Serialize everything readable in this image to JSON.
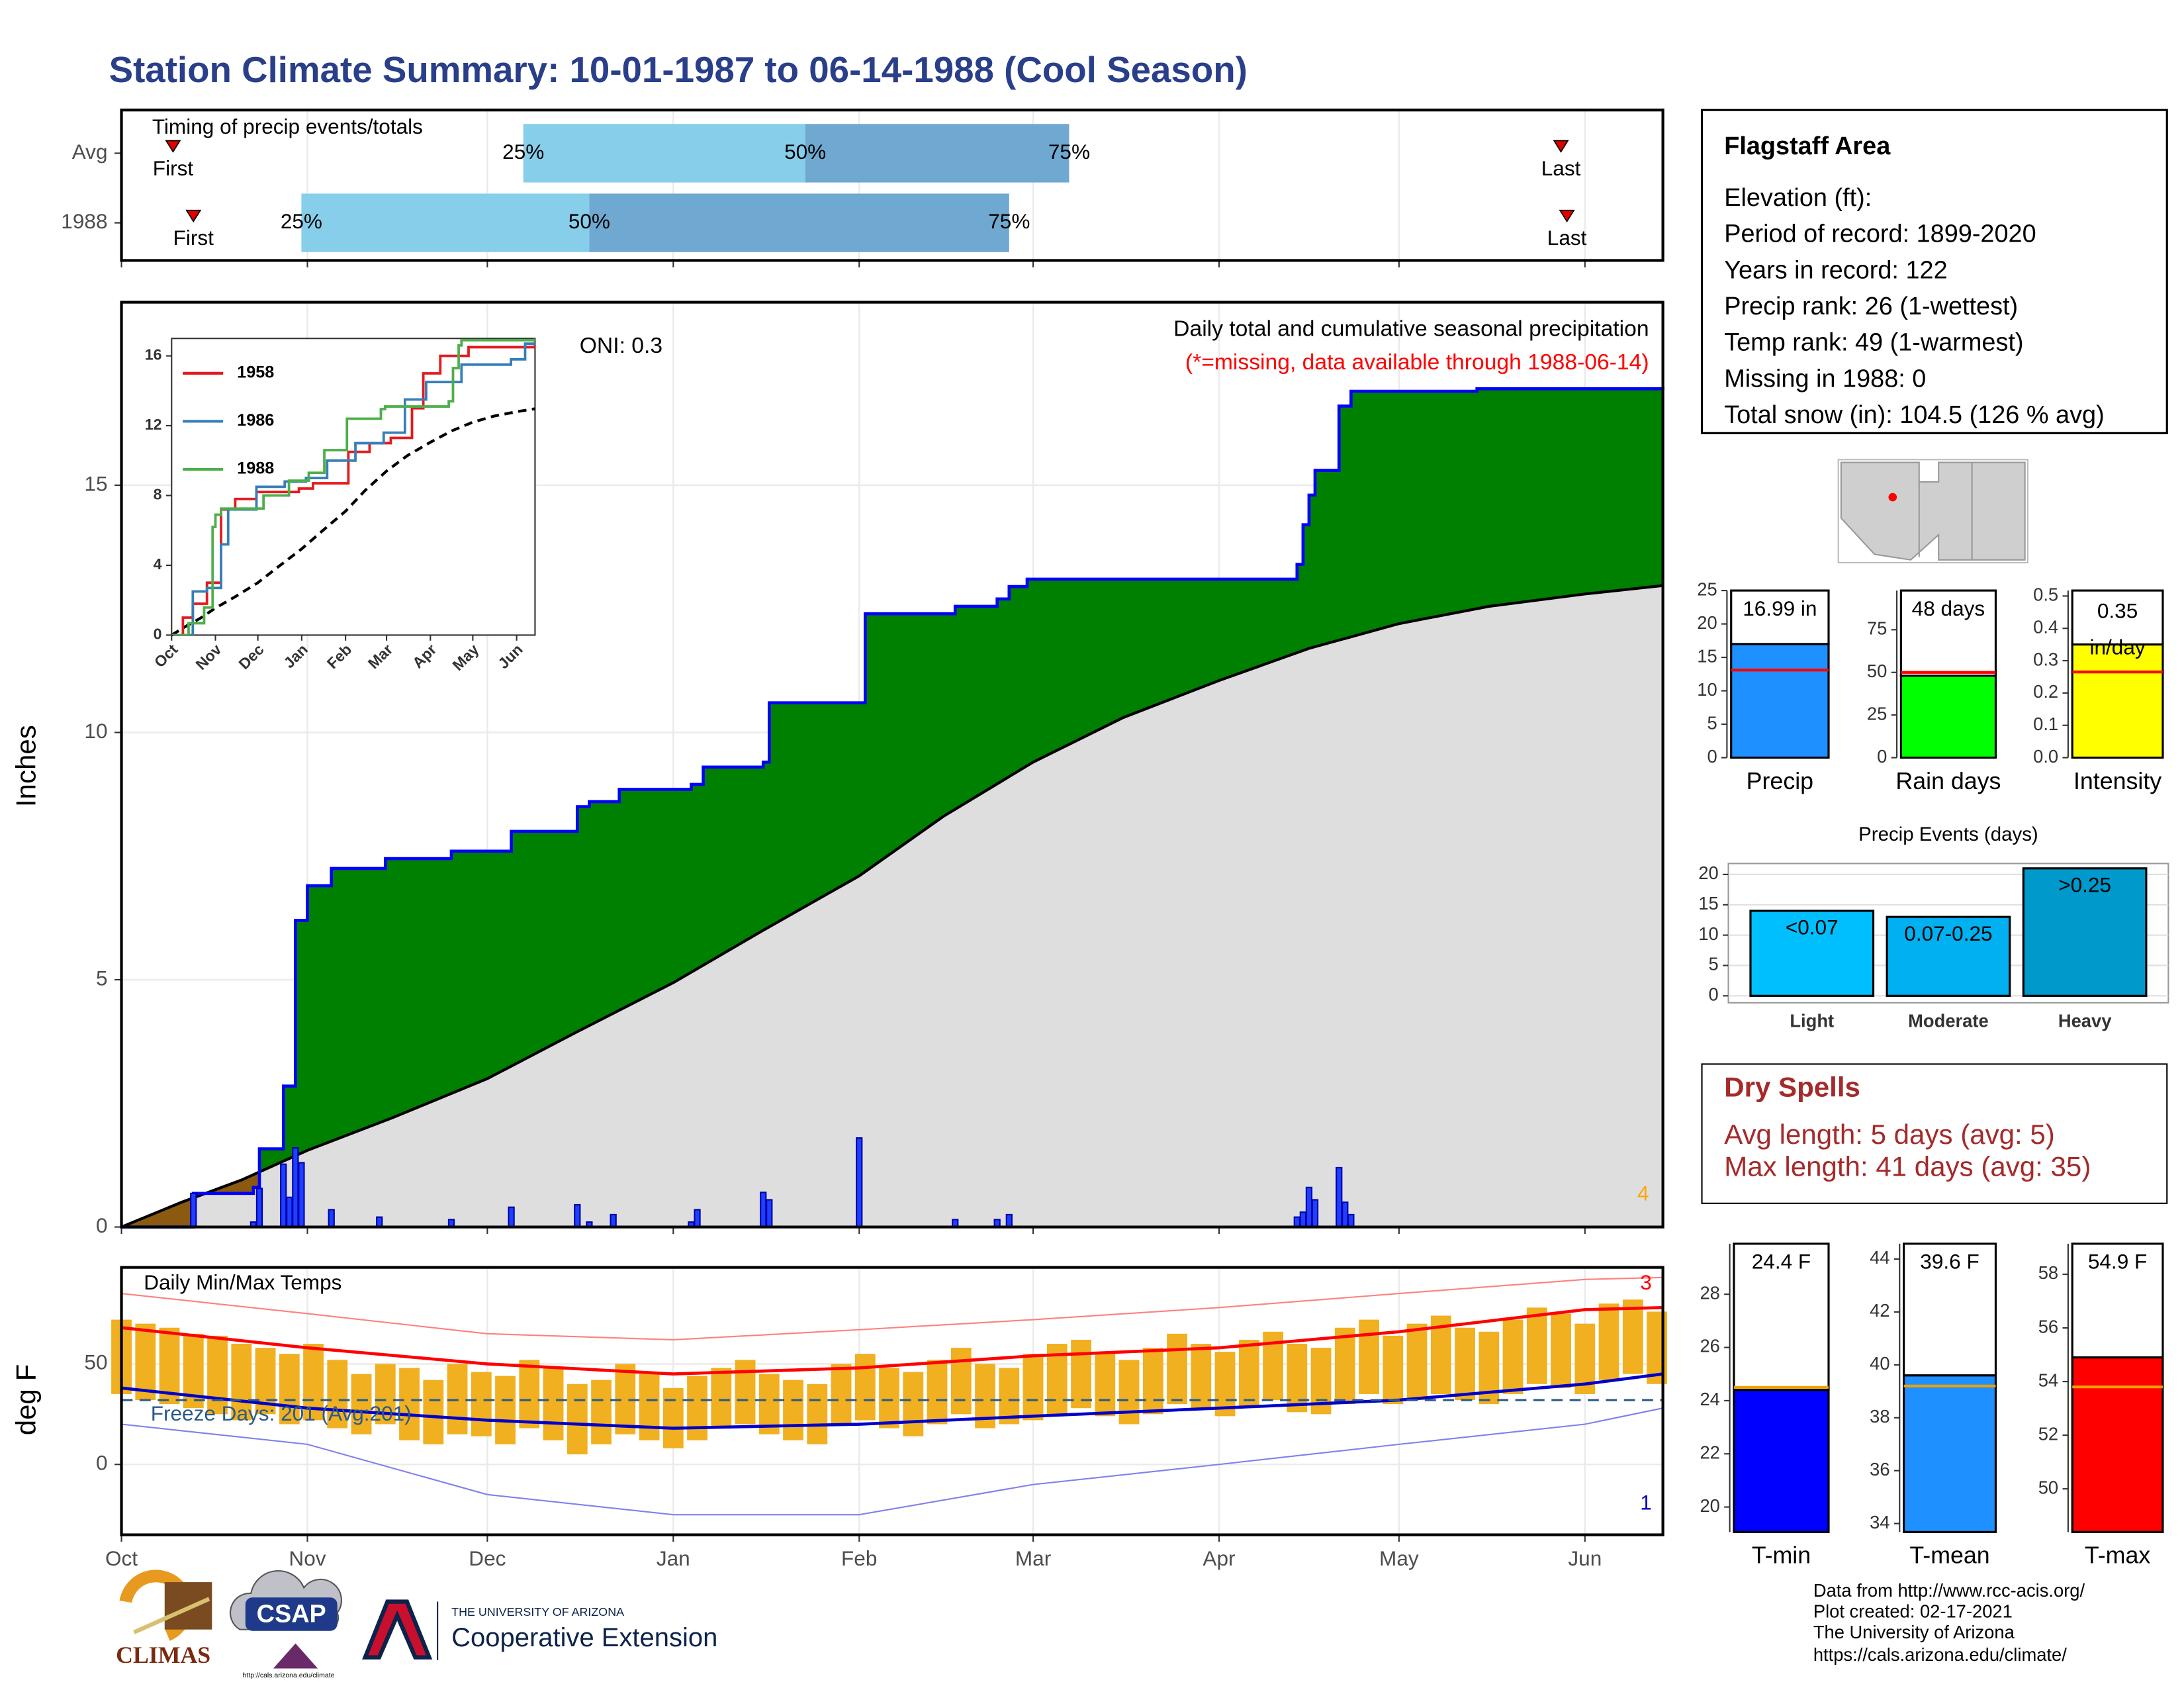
{
  "title": "Station Climate Summary: 10-01-1987 to 06-14-1988 (Cool Season)",
  "station": {
    "name": "Flagstaff Area",
    "lines": [
      "Elevation (ft):",
      "Period of record: 1899-2020",
      "Years in record: 122",
      "Precip rank: 26 (1-wettest)",
      "Temp rank: 49 (1-warmest)",
      "Missing in 1988: 0",
      "Total snow (in): 104.5 (126 % avg)"
    ]
  },
  "dry_spells": {
    "title": "Dry Spells",
    "lines": [
      "Avg length: 5 days (avg: 5)",
      "Max length: 41 days (avg: 35)"
    ]
  },
  "footer": [
    "Data from http://www.rcc-acis.org/",
    "Plot created: 02-17-2021",
    "The University of Arizona",
    "https://cals.arizona.edu/climate/"
  ],
  "logos": {
    "climas": "CLIMAS",
    "csap": "CSAP",
    "csap_url": "http://cals.arizona.edu/climate",
    "university": "THE UNIVERSITY OF ARIZONA",
    "extension": "Cooperative Extension"
  },
  "chart_data": [
    {
      "type": "timing",
      "title": "Timing of precip events/totals",
      "xlim": [
        0,
        257
      ],
      "xticks": [
        0,
        31,
        61,
        92,
        123,
        152,
        183,
        213,
        244
      ],
      "marker_labels": [
        "First",
        "Last"
      ],
      "quantile_labels": [
        "25%",
        "50%",
        "75%"
      ],
      "colors": [
        "#87ceeb",
        "#6fa8d0"
      ],
      "marker_color": "#e00000",
      "rows": [
        {
          "name": "Avg",
          "first": 8.6,
          "last": 240,
          "quantiles": [
            67,
            114,
            158
          ]
        },
        {
          "name": "1988",
          "first": 12,
          "last": 241,
          "quantiles": [
            30,
            78,
            148
          ]
        }
      ]
    },
    {
      "type": "cumulative-precip",
      "title": "Daily total and cumulative seasonal precipitation",
      "subtitle": "(*=missing, data available through 1988-06-14)",
      "annotation": "ONI: 0.3",
      "corner_label": "4",
      "y_label": "Inches",
      "xlim": [
        0,
        257
      ],
      "xticks": [
        0,
        31,
        61,
        92,
        123,
        152,
        183,
        213,
        244
      ],
      "ylim": [
        0,
        18.7
      ],
      "yticks": [
        0,
        5,
        10,
        15
      ],
      "grid": true,
      "colors": {
        "above": "#008000",
        "below": "#8b5a10",
        "average_fill": "#dedede",
        "average_line": "#000000",
        "observed_line": "#0000ff",
        "daily": "#1f3fff"
      },
      "observed": {
        "x": [
          0,
          12,
          22,
          23,
          27,
          29,
          31,
          35,
          44,
          55,
          65,
          76,
          78,
          83,
          95,
          97,
          107,
          108,
          124,
          139,
          146,
          148,
          151,
          196,
          197,
          198,
          199,
          203,
          205,
          226,
          257
        ],
        "values": [
          0,
          0.68,
          0.8,
          1.58,
          2.85,
          6.2,
          6.9,
          7.25,
          7.45,
          7.6,
          8.0,
          8.5,
          8.6,
          8.85,
          8.95,
          9.3,
          9.4,
          10.6,
          12.4,
          12.55,
          12.7,
          12.95,
          13.1,
          13.4,
          14.2,
          14.8,
          15.3,
          16.6,
          16.9,
          16.95,
          16.99
        ]
      },
      "average": {
        "x": [
          0,
          10,
          20,
          31,
          45,
          61,
          76,
          92,
          107,
          123,
          137,
          152,
          167,
          183,
          198,
          213,
          228,
          244,
          257
        ],
        "values": [
          0,
          0.5,
          0.95,
          1.55,
          2.2,
          3.0,
          3.95,
          4.94,
          6.0,
          7.1,
          8.3,
          9.4,
          10.3,
          11.05,
          11.7,
          12.2,
          12.55,
          12.8,
          12.97
        ]
      },
      "daily": {
        "x": [
          12,
          22,
          23,
          27,
          28,
          29,
          30,
          35,
          43,
          55,
          65,
          76,
          78,
          82,
          95,
          96,
          107,
          108,
          123,
          139,
          146,
          148,
          196,
          197,
          198,
          199,
          203,
          204,
          205
        ],
        "values": [
          0.68,
          0.1,
          0.78,
          1.27,
          0.6,
          1.6,
          1.3,
          0.35,
          0.2,
          0.15,
          0.4,
          0.45,
          0.1,
          0.25,
          0.1,
          0.35,
          0.7,
          0.55,
          1.8,
          0.15,
          0.15,
          0.25,
          0.2,
          0.3,
          0.8,
          0.55,
          1.2,
          0.5,
          0.25
        ]
      }
    },
    {
      "type": "line",
      "xlim": [
        0,
        257
      ],
      "xticks": [
        {
          "value": 0,
          "label": "Oct"
        },
        {
          "value": 31,
          "label": "Nov"
        },
        {
          "value": 61,
          "label": "Dec"
        },
        {
          "value": 92,
          "label": "Jan"
        },
        {
          "value": 123,
          "label": "Feb"
        },
        {
          "value": 152,
          "label": "Mar"
        },
        {
          "value": 183,
          "label": "Apr"
        },
        {
          "value": 213,
          "label": "May"
        },
        {
          "value": 244,
          "label": "Jun"
        }
      ],
      "ylim": [
        0,
        17
      ],
      "yticks": [
        0,
        4,
        8,
        12,
        16
      ],
      "series": [
        {
          "name": "1958",
          "color": "#e41a1c",
          "x": [
            0,
            8,
            15,
            25,
            35,
            45,
            60,
            90,
            100,
            115,
            125,
            140,
            155,
            170,
            178,
            190,
            210,
            257
          ],
          "values": [
            0,
            1.0,
            1.8,
            3.0,
            7.2,
            7.8,
            8.2,
            8.4,
            8.7,
            8.7,
            10.5,
            11.0,
            11.3,
            13.0,
            15.0,
            16.0,
            16.5,
            16.9
          ]
        },
        {
          "name": "1986",
          "color": "#377eb8",
          "x": [
            0,
            15,
            25,
            35,
            40,
            60,
            80,
            95,
            110,
            130,
            150,
            165,
            180,
            205,
            240,
            250,
            257
          ],
          "values": [
            0,
            2.5,
            2.7,
            5.2,
            7.2,
            8.5,
            8.8,
            9.0,
            10.0,
            11.0,
            11.6,
            13.5,
            14.5,
            15.5,
            15.8,
            16.7,
            16.8
          ]
        },
        {
          "name": "1988",
          "color": "#4daf4a",
          "x": [
            0,
            12,
            23,
            29,
            31,
            35,
            65,
            83,
            97,
            108,
            124,
            148,
            151,
            196,
            199,
            203,
            205,
            257
          ],
          "values": [
            0,
            0.68,
            1.58,
            6.2,
            6.9,
            7.25,
            8.0,
            8.85,
            9.3,
            10.6,
            12.4,
            12.95,
            13.1,
            13.4,
            15.3,
            16.6,
            16.9,
            16.99
          ]
        }
      ],
      "average": {
        "color": "#000000",
        "x": [
          0,
          10,
          20,
          31,
          45,
          61,
          76,
          92,
          107,
          123,
          137,
          152,
          167,
          183,
          198,
          213,
          228,
          244,
          257
        ],
        "values": [
          0,
          0.5,
          0.95,
          1.55,
          2.2,
          3.0,
          3.95,
          4.94,
          6.0,
          7.1,
          8.3,
          9.4,
          10.3,
          11.05,
          11.7,
          12.2,
          12.55,
          12.8,
          12.97
        ]
      }
    },
    {
      "type": "temperature",
      "title": "Daily Min/Max Temps",
      "annotation": "Freeze Days: 201 (Avg:201)",
      "y_label": "deg F",
      "record_highs": 3,
      "record_lows": 1,
      "freeze_line": 32,
      "xlim": [
        0,
        257
      ],
      "xticks": [
        {
          "value": 0,
          "label": "Oct"
        },
        {
          "value": 31,
          "label": "Nov"
        },
        {
          "value": 61,
          "label": "Dec"
        },
        {
          "value": 92,
          "label": "Jan"
        },
        {
          "value": 123,
          "label": "Feb"
        },
        {
          "value": 152,
          "label": "Mar"
        },
        {
          "value": 183,
          "label": "Apr"
        },
        {
          "value": 213,
          "label": "May"
        },
        {
          "value": 244,
          "label": "Jun"
        }
      ],
      "ylim": [
        -35,
        98
      ],
      "yticks": [
        0,
        50
      ],
      "grid": true,
      "colors": {
        "daily": "#f0b020",
        "average_max": "#ff0000",
        "average_min": "#0000cc",
        "record_max": "#ff8080",
        "record_min": "#8080ee",
        "freeze": "#2a5a8a"
      },
      "daily": {
        "x": [
          0,
          4,
          8,
          12,
          16,
          20,
          24,
          28,
          32,
          36,
          40,
          44,
          48,
          52,
          56,
          60,
          64,
          68,
          72,
          76,
          80,
          84,
          88,
          92,
          96,
          100,
          104,
          108,
          112,
          116,
          120,
          124,
          128,
          132,
          136,
          140,
          144,
          148,
          152,
          156,
          160,
          164,
          168,
          172,
          176,
          180,
          184,
          188,
          192,
          196,
          200,
          204,
          208,
          212,
          216,
          220,
          224,
          228,
          232,
          236,
          240,
          244,
          248,
          252,
          256
        ],
        "max": [
          72,
          70,
          68,
          65,
          64,
          60,
          58,
          55,
          60,
          52,
          45,
          50,
          48,
          42,
          50,
          46,
          44,
          52,
          48,
          40,
          42,
          50,
          45,
          38,
          44,
          48,
          52,
          45,
          42,
          40,
          50,
          55,
          48,
          46,
          52,
          58,
          50,
          48,
          55,
          60,
          62,
          56,
          52,
          58,
          65,
          60,
          56,
          62,
          66,
          60,
          58,
          68,
          72,
          64,
          70,
          74,
          68,
          66,
          72,
          78,
          75,
          70,
          80,
          82,
          76
        ],
        "min": [
          35,
          32,
          30,
          28,
          25,
          22,
          25,
          20,
          22,
          18,
          15,
          20,
          12,
          10,
          15,
          14,
          10,
          18,
          12,
          5,
          10,
          15,
          12,
          8,
          12,
          18,
          20,
          15,
          12,
          10,
          20,
          22,
          18,
          14,
          20,
          25,
          18,
          20,
          22,
          25,
          28,
          24,
          20,
          25,
          30,
          28,
          24,
          28,
          32,
          26,
          25,
          30,
          35,
          30,
          32,
          35,
          32,
          30,
          35,
          40,
          38,
          35,
          42,
          45,
          40
        ]
      },
      "lines_x": [
        0,
        31,
        61,
        92,
        123,
        152,
        183,
        213,
        244,
        257
      ],
      "average_max": [
        68,
        58,
        50,
        45,
        48,
        54,
        58,
        66,
        77,
        78
      ],
      "average_min": [
        38,
        28,
        22,
        18,
        20,
        24,
        28,
        32,
        40,
        45
      ],
      "record_max": [
        85,
        75,
        65,
        62,
        67,
        72,
        78,
        85,
        92,
        93
      ],
      "record_min": [
        20,
        10,
        -15,
        -25,
        -25,
        -10,
        0,
        10,
        20,
        28
      ]
    },
    {
      "type": "gauge",
      "categories": [
        "Precip"
      ],
      "values": [
        16.99
      ],
      "value_labels": [
        "16.99 in"
      ],
      "average": 13.1,
      "ylim": [
        0,
        25
      ],
      "yticks": [
        0,
        5,
        10,
        15,
        20,
        25
      ],
      "color": "#1e90ff",
      "average_color": "#ff0000"
    },
    {
      "type": "gauge",
      "categories": [
        "Rain days"
      ],
      "values": [
        48
      ],
      "value_labels": [
        "48 days"
      ],
      "average": 50,
      "ylim": [
        0,
        98
      ],
      "yticks": [
        0,
        25,
        50,
        75
      ],
      "color": "#00ff00",
      "average_color": "#ff0000"
    },
    {
      "type": "gauge",
      "categories": [
        "Intensity"
      ],
      "values": [
        0.35
      ],
      "value_labels": [
        "0.35 in/day"
      ],
      "average": 0.265,
      "ylim": [
        0,
        0.517
      ],
      "yticks": [
        {
          "value": 0,
          "label": "0.0"
        },
        0.1,
        0.2,
        0.3,
        0.4,
        0.5
      ],
      "color": "#ffff00",
      "average_color": "#ff0000"
    },
    {
      "type": "bar",
      "title": "Precip Events (days)",
      "categories": [
        "Light",
        "Moderate",
        "Heavy"
      ],
      "values": [
        14,
        13,
        21
      ],
      "bar_labels": [
        "<0.07",
        "0.07-0.25",
        ">0.25"
      ],
      "colors": [
        "#00bfff",
        "#00b0f0",
        "#0099cc"
      ],
      "ylim": [
        0,
        21.8
      ],
      "yticks": [
        0,
        5,
        10,
        15,
        20
      ],
      "grid": true
    },
    {
      "type": "gauge",
      "categories": [
        "T-min"
      ],
      "values": [
        24.4
      ],
      "value_labels": [
        "24.4 F"
      ],
      "average": 24.5,
      "ylim": [
        19.06,
        29.9
      ],
      "yticks": [
        20,
        22,
        24,
        26,
        28
      ],
      "color": "#0000ff",
      "average_color": "#f0a000"
    },
    {
      "type": "gauge",
      "categories": [
        "T-mean"
      ],
      "values": [
        39.6
      ],
      "value_labels": [
        "39.6 F"
      ],
      "average": 39.2,
      "ylim": [
        33.68,
        44.58
      ],
      "yticks": [
        34,
        36,
        38,
        40,
        42,
        44
      ],
      "color": "#1e90ff",
      "average_color": "#f0a000"
    },
    {
      "type": "gauge",
      "categories": [
        "T-max"
      ],
      "values": [
        54.9
      ],
      "value_labels": [
        "54.9 F"
      ],
      "average": 53.8,
      "ylim": [
        48.39,
        59.14
      ],
      "yticks": [
        50,
        52,
        54,
        56,
        58
      ],
      "color": "#ff0000",
      "average_color": "#f0a000"
    }
  ]
}
